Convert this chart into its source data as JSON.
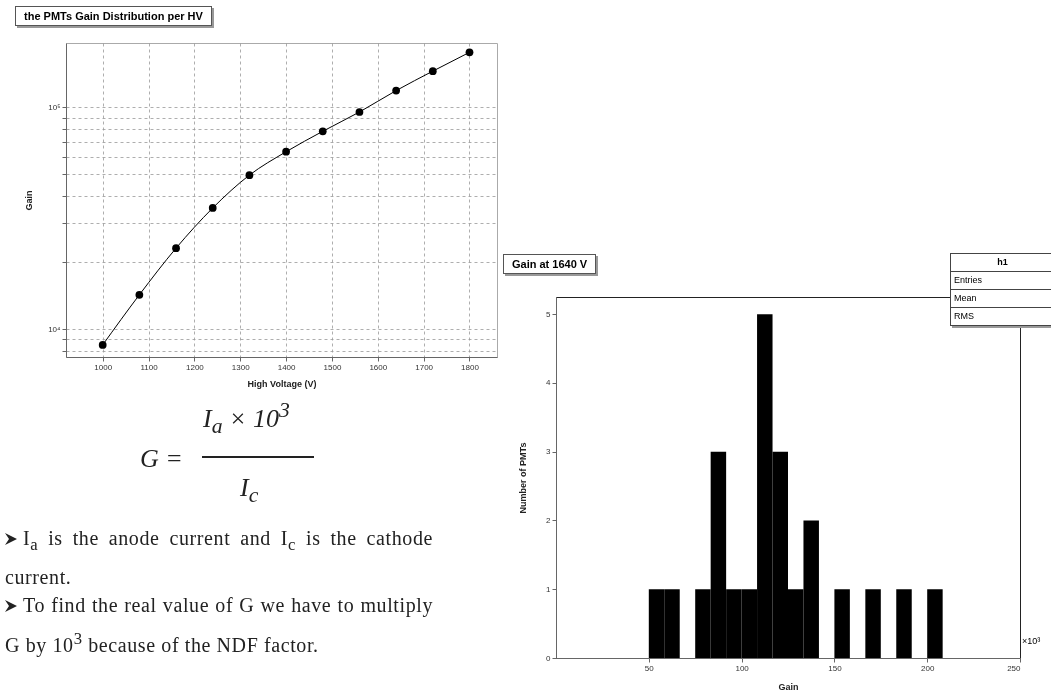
{
  "chart_data": [
    {
      "type": "line",
      "title": "the PMTs Gain Distribution per HV",
      "xlabel": "High Voltage (V)",
      "ylabel": "Gain",
      "x": [
        1000,
        1080,
        1160,
        1240,
        1320,
        1400,
        1480,
        1560,
        1640,
        1720,
        1800
      ],
      "series": [
        {
          "color": "#000000",
          "values": [
            8500,
            14300,
            23200,
            35200,
            49500,
            63100,
            78000,
            95300,
            119000,
            145600,
            177000
          ]
        }
      ],
      "xlim": [
        920,
        1860
      ],
      "ylim": [
        7500,
        195000
      ],
      "xticks": [
        1000,
        1100,
        1200,
        1300,
        1400,
        1500,
        1600,
        1700,
        1800
      ],
      "yticks": [
        {
          "value": 8000,
          "label": null
        },
        {
          "value": 9000,
          "label": null
        },
        {
          "value": 10000,
          "label": "10⁴"
        },
        {
          "value": 20000,
          "label": null
        },
        {
          "value": 30000,
          "label": null
        },
        {
          "value": 40000,
          "label": null
        },
        {
          "value": 50000,
          "label": null
        },
        {
          "value": 60000,
          "label": null
        },
        {
          "value": 70000,
          "label": null
        },
        {
          "value": 80000,
          "label": null
        },
        {
          "value": 90000,
          "label": null
        },
        {
          "value": 100000,
          "label": "10⁵"
        }
      ],
      "log": "y",
      "grid": true,
      "marker": "circle",
      "line_style": "solid",
      "annotations": [
        "G =",
        "I$_{a}$ × 10$^{3}$",
        "I$_{c}$",
        "I$_{a}$ is the anode current and I$_{c}$ is the cathode current.",
        "To find the real value of G we have to multiply G by 10$^{3}$ because of the NDF factor."
      ]
    },
    {
      "type": "histogram",
      "title": "Gain at 1640 V",
      "xlabel": "Gain",
      "ylabel": "Number of PMTs",
      "color": "#000000",
      "bins": [
        0,
        8.33,
        16.67,
        25,
        33.33,
        41.67,
        50,
        58.33,
        66.67,
        75,
        83.33,
        91.67,
        100,
        108.33,
        116.67,
        125,
        133.33,
        141.67,
        150,
        158.33,
        166.67,
        175,
        183.33,
        191.67,
        200,
        208.33,
        216.67,
        225,
        233.33,
        241.67,
        250
      ],
      "values": [
        0,
        0,
        0,
        0,
        0,
        0,
        1,
        1,
        0,
        1,
        3,
        1,
        1,
        5,
        3,
        1,
        2,
        0,
        1,
        0,
        1,
        0,
        1,
        0,
        1,
        0,
        0,
        0,
        0,
        0
      ],
      "xlim": [
        0,
        250
      ],
      "ylim": [
        0,
        5.25
      ],
      "xticks": [
        50,
        100,
        150,
        200,
        250
      ],
      "yticks": [
        0,
        1,
        2,
        3,
        4,
        5
      ],
      "annotations": [
        "h1",
        "Entries",
        "Mean",
        "RMS",
        "×10³"
      ]
    }
  ]
}
